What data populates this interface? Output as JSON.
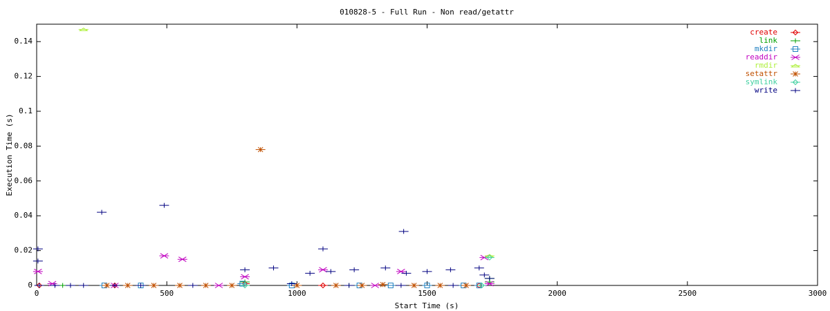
{
  "chart_data": {
    "type": "scatter",
    "title": "010828-5 - Full Run - Non read/getattr",
    "xlabel": "Start Time (s)",
    "ylabel": "Execution Time (s)",
    "xlim": [
      0,
      3000
    ],
    "ylim": [
      0,
      0.15
    ],
    "xticks": [
      0,
      500,
      1000,
      1500,
      2000,
      2500,
      3000
    ],
    "yticks": [
      0,
      0.02,
      0.04,
      0.06,
      0.08,
      0.1,
      0.12,
      0.14
    ],
    "grid": false,
    "legend": "upper right",
    "series": [
      {
        "name": "create",
        "color": "#e00000",
        "marker": "diamond",
        "x": [
          10,
          300,
          800,
          1100,
          1700
        ],
        "values": [
          0,
          0,
          0.001,
          0,
          0
        ]
      },
      {
        "name": "link",
        "color": "#00a000",
        "marker": "plus",
        "x": [
          100,
          800,
          1200,
          1740,
          1740
        ],
        "values": [
          0,
          0.002,
          0,
          0.004,
          0.002
        ]
      },
      {
        "name": "mkdir",
        "color": "#2080c0",
        "marker": "square",
        "x": [
          260,
          400,
          790,
          980,
          1240,
          1360,
          1500,
          1640,
          1700
        ],
        "values": [
          0,
          0,
          0.001,
          0,
          0,
          0,
          0,
          0,
          0
        ]
      },
      {
        "name": "readdir",
        "color": "#c000c0",
        "marker": "cross",
        "x": [
          5,
          60,
          300,
          490,
          560,
          700,
          800,
          1100,
          1300,
          1400,
          1720,
          1740
        ],
        "values": [
          0.008,
          0.001,
          0,
          0.017,
          0.015,
          0,
          0.005,
          0.009,
          0,
          0.008,
          0.016,
          0.001
        ]
      },
      {
        "name": "rmdir",
        "color": "#b0f040",
        "marker": "triangle",
        "x": [
          180,
          1740
        ],
        "values": [
          0.147,
          0.017
        ]
      },
      {
        "name": "setattr",
        "color": "#c05000",
        "marker": "star",
        "x": [
          270,
          350,
          450,
          550,
          650,
          750,
          860,
          1000,
          1150,
          1250,
          1330,
          1450,
          1550,
          1650
        ],
        "values": [
          0,
          0,
          0,
          0,
          0,
          0,
          0.078,
          0,
          0,
          0,
          0.0005,
          0,
          0,
          0
        ]
      },
      {
        "name": "symlink",
        "color": "#40d0a0",
        "marker": "diamond",
        "x": [
          800,
          1710,
          1740
        ],
        "values": [
          0,
          0,
          0.016
        ]
      },
      {
        "name": "write",
        "color": "#000080",
        "marker": "plus",
        "x": [
          5,
          5,
          10,
          70,
          130,
          180,
          250,
          300,
          400,
          490,
          600,
          800,
          910,
          980,
          1050,
          1100,
          1130,
          1200,
          1220,
          1340,
          1400,
          1410,
          1420,
          1500,
          1590,
          1600,
          1700,
          1720,
          1740
        ],
        "values": [
          0.021,
          0.014,
          0,
          0,
          0,
          0,
          0.042,
          0,
          0,
          0.046,
          0,
          0.009,
          0.01,
          0.001,
          0.007,
          0.021,
          0.008,
          0,
          0.009,
          0.01,
          0,
          0.031,
          0.007,
          0.008,
          0.009,
          0,
          0.01,
          0.006,
          0.004
        ]
      }
    ]
  }
}
